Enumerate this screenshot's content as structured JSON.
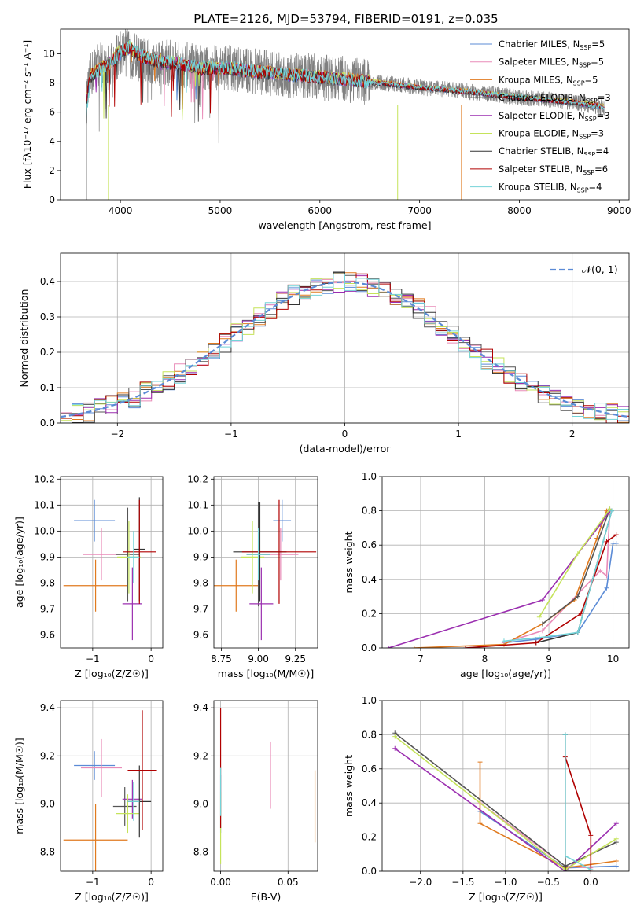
{
  "title": "PLATE=2126, MJD=53794, FIBERID=0191, z=0.035",
  "colors": {
    "Chabrier MILES": "#5b8bd6",
    "Salpeter MILES": "#e98bb8",
    "Kroupa MILES": "#e07a1f",
    "Chabrier ELODIE": "#555555",
    "Salpeter ELODIE": "#9b2fb0",
    "Kroupa ELODIE": "#c5e35a",
    "Chabrier STELIB": "#333333",
    "Salpeter STELIB": "#b00000",
    "Kroupa STELIB": "#74d3d8"
  },
  "chart_data": [
    {
      "type": "line",
      "name": "spectrum",
      "xlabel": "wavelength [Angstrom, rest frame]",
      "ylabel": "Flux [fλ10⁻¹⁷ erg cm⁻² s⁻¹ A⁻¹]",
      "xlim": [
        3400,
        9100
      ],
      "ylim": [
        0,
        11.7
      ],
      "xticks": [
        "4000",
        "5000",
        "6000",
        "7000",
        "8000",
        "9000"
      ],
      "yticks": [
        "0",
        "2",
        "4",
        "6",
        "8",
        "10"
      ],
      "legend_position": "top-right",
      "legend": [
        {
          "label": "Chabrier MILES, N",
          "sub": "SSP",
          "suffix": "=5",
          "color": "#5b8bd6"
        },
        {
          "label": "Salpeter MILES, N",
          "sub": "SSP",
          "suffix": "=5",
          "color": "#e98bb8"
        },
        {
          "label": "Kroupa MILES, N",
          "sub": "SSP",
          "suffix": "=5",
          "color": "#e07a1f"
        },
        {
          "label": "Chabrier ELODIE, N",
          "sub": "SSP",
          "suffix": "=3",
          "color": "#555555"
        },
        {
          "label": "Salpeter ELODIE, N",
          "sub": "SSP",
          "suffix": "=3",
          "color": "#9b2fb0"
        },
        {
          "label": "Kroupa ELODIE, N",
          "sub": "SSP",
          "suffix": "=3",
          "color": "#c5e35a"
        },
        {
          "label": "Chabrier STELIB, N",
          "sub": "SSP",
          "suffix": "=4",
          "color": "#333333"
        },
        {
          "label": "Salpeter STELIB, N",
          "sub": "SSP",
          "suffix": "=6",
          "color": "#b00000"
        },
        {
          "label": "Kroupa STELIB, N",
          "sub": "SSP",
          "suffix": "=4",
          "color": "#74d3d8"
        }
      ],
      "observed": {
        "color": "#808080",
        "x": [
          3660,
          3700,
          3750,
          3800,
          3850,
          3900,
          3950,
          4000,
          4050,
          4100,
          4150,
          4200,
          4300,
          4400,
          4500,
          4600,
          4700,
          4800,
          4900,
          5000,
          5200,
          5400,
          5600,
          5800,
          6000,
          6200,
          6400,
          6600,
          6800,
          7000,
          7200,
          7400,
          7600,
          7800,
          8000,
          8200,
          8400,
          8600,
          8800,
          8850
        ],
        "y": [
          6.6,
          8.4,
          9.2,
          9.4,
          8.9,
          9.2,
          9.6,
          10.0,
          10.4,
          9.8,
          9.9,
          9.6,
          9.4,
          9.5,
          9.4,
          9.3,
          9.2,
          9.0,
          9.0,
          9.1,
          8.9,
          8.8,
          8.6,
          8.5,
          8.4,
          8.3,
          8.1,
          8.0,
          7.9,
          7.7,
          7.6,
          7.5,
          7.3,
          7.2,
          7.0,
          6.9,
          6.8,
          6.6,
          6.4,
          6.3
        ]
      },
      "models": {
        "x": [
          3660,
          3700,
          3800,
          3900,
          4000,
          4100,
          4200,
          4400,
          4600,
          4800,
          5000,
          5500,
          6000,
          6500,
          7000,
          7500,
          8000,
          8500,
          8850
        ],
        "Chabrier MILES": [
          6.9,
          8.5,
          9.0,
          9.4,
          10.2,
          10.4,
          9.8,
          9.5,
          9.3,
          9.0,
          9.0,
          8.7,
          8.4,
          8.1,
          7.7,
          7.4,
          7.0,
          6.7,
          6.4
        ],
        "Kroupa STELIB": [
          5.8,
          8.3,
          8.9,
          9.3,
          10.1,
          10.6,
          9.9,
          9.6,
          9.3,
          9.1,
          9.1,
          8.7,
          8.4,
          8.0,
          7.7,
          7.4,
          7.0,
          6.7,
          6.3
        ]
      }
    },
    {
      "type": "histogram",
      "name": "residuals",
      "xlabel": "(data-model)/error",
      "ylabel": "Normed distribution",
      "xlim": [
        -2.5,
        2.5
      ],
      "ylim": [
        0,
        0.48
      ],
      "xticks": [
        "−2",
        "−1",
        "0",
        "1",
        "2"
      ],
      "yticks": [
        "0.0",
        "0.1",
        "0.2",
        "0.3",
        "0.4"
      ],
      "legend": [
        {
          "label": "𝒩(0, 1)",
          "style": "dashed",
          "color": "#5b8bd6"
        }
      ],
      "bin_width": 0.1
    },
    {
      "type": "scatter",
      "name": "age-vs-Z",
      "xlabel": "Z [log₁₀(Z/Z☉)]",
      "ylabel": "age  [log₁₀(age/yr)]",
      "xlim": [
        -1.55,
        0.2
      ],
      "ylim": [
        9.55,
        10.21
      ],
      "xticks": [
        {
          "v": -1,
          "t": "−1"
        },
        {
          "v": 0,
          "t": "0"
        }
      ],
      "yticks": [
        {
          "v": 9.6,
          "t": "9.6"
        },
        {
          "v": 9.7,
          "t": "9.7"
        },
        {
          "v": 9.8,
          "t": "9.8"
        },
        {
          "v": 9.9,
          "t": "9.9"
        },
        {
          "v": 10.0,
          "t": "10.0"
        },
        {
          "v": 10.1,
          "t": "10.1"
        },
        {
          "v": 10.2,
          "t": "10.2"
        }
      ],
      "points": [
        {
          "series": "Chabrier MILES",
          "x": -0.97,
          "y": 10.04,
          "xerr": 0.35,
          "yerr": 0.08
        },
        {
          "series": "Salpeter MILES",
          "x": -0.85,
          "y": 9.91,
          "xerr": 0.32,
          "yerr": 0.1
        },
        {
          "series": "Kroupa MILES",
          "x": -0.95,
          "y": 9.79,
          "xerr": 0.55,
          "yerr": 0.1
        },
        {
          "series": "Chabrier ELODIE",
          "x": -0.4,
          "y": 9.91,
          "xerr": 0.2,
          "yerr": 0.18
        },
        {
          "series": "Salpeter ELODIE",
          "x": -0.32,
          "y": 9.72,
          "xerr": 0.17,
          "yerr": 0.14
        },
        {
          "series": "Kroupa ELODIE",
          "x": -0.38,
          "y": 9.9,
          "xerr": 0.2,
          "yerr": 0.14
        },
        {
          "series": "Chabrier STELIB",
          "x": -0.2,
          "y": 9.93,
          "xerr": 0.1,
          "yerr": 0.2
        },
        {
          "series": "Salpeter STELIB",
          "x": -0.2,
          "y": 9.92,
          "xerr": 0.28,
          "yerr": 0.2
        },
        {
          "series": "Kroupa STELIB",
          "x": -0.3,
          "y": 9.9,
          "xerr": 0.1,
          "yerr": 0.1
        }
      ]
    },
    {
      "type": "scatter",
      "name": "age-vs-mass",
      "xlabel": "mass [log₁₀(M/M☉)]",
      "ylabel": "",
      "xlim": [
        8.7,
        9.4
      ],
      "ylim": [
        9.55,
        10.21
      ],
      "xticks": [
        {
          "v": 8.75,
          "t": "8.75"
        },
        {
          "v": 9.0,
          "t": "9.00"
        },
        {
          "v": 9.25,
          "t": "9.25"
        }
      ],
      "yticks": [
        {
          "v": 9.6,
          "t": "9.6"
        },
        {
          "v": 9.7,
          "t": "9.7"
        },
        {
          "v": 9.8,
          "t": "9.8"
        },
        {
          "v": 9.9,
          "t": "9.9"
        },
        {
          "v": 10.0,
          "t": "10.0"
        },
        {
          "v": 10.1,
          "t": "10.1"
        },
        {
          "v": 10.2,
          "t": "10.2"
        }
      ],
      "points": [
        {
          "series": "Chabrier MILES",
          "x": 9.16,
          "y": 10.04,
          "xerr": 0.06,
          "yerr": 0.08
        },
        {
          "series": "Salpeter MILES",
          "x": 9.15,
          "y": 9.91,
          "xerr": 0.12,
          "yerr": 0.1
        },
        {
          "series": "Kroupa MILES",
          "x": 8.85,
          "y": 9.79,
          "xerr": 0.15,
          "yerr": 0.1
        },
        {
          "series": "Chabrier ELODIE",
          "x": 9.0,
          "y": 9.91,
          "xerr": 0.08,
          "yerr": 0.2
        },
        {
          "series": "Salpeter ELODIE",
          "x": 9.02,
          "y": 9.72,
          "xerr": 0.08,
          "yerr": 0.14
        },
        {
          "series": "Kroupa ELODIE",
          "x": 8.96,
          "y": 9.9,
          "xerr": 0.08,
          "yerr": 0.14
        },
        {
          "series": "Chabrier STELIB",
          "x": 9.01,
          "y": 9.92,
          "xerr": 0.18,
          "yerr": 0.19
        },
        {
          "series": "Salpeter STELIB",
          "x": 9.14,
          "y": 9.92,
          "xerr": 0.25,
          "yerr": 0.2
        },
        {
          "series": "Kroupa STELIB",
          "x": 9.0,
          "y": 9.91,
          "xerr": 0.08,
          "yerr": 0.1
        }
      ]
    },
    {
      "type": "line",
      "name": "weight-vs-age",
      "xlabel": "age  [log₁₀(age/yr)]",
      "ylabel": "mass weight",
      "xlim": [
        6.4,
        10.25
      ],
      "ylim": [
        0,
        1.0
      ],
      "xticks": [
        {
          "v": 7,
          "t": "7"
        },
        {
          "v": 8,
          "t": "8"
        },
        {
          "v": 9,
          "t": "9"
        },
        {
          "v": 10,
          "t": "10"
        }
      ],
      "yticks": [
        {
          "v": 0,
          "t": "0.0"
        },
        {
          "v": 0.2,
          "t": "0.2"
        },
        {
          "v": 0.4,
          "t": "0.4"
        },
        {
          "v": 0.6,
          "t": "0.6"
        },
        {
          "v": 0.8,
          "t": "0.8"
        },
        {
          "v": 1.0,
          "t": "1.0"
        }
      ],
      "series": [
        {
          "name": "Chabrier MILES",
          "x": [
            8.3,
            8.8,
            9.45,
            9.9,
            10.0,
            10.05
          ],
          "y": [
            0.03,
            0.05,
            0.09,
            0.35,
            0.61,
            0.61
          ]
        },
        {
          "name": "Salpeter MILES",
          "x": [
            8.3,
            8.9,
            9.8,
            9.9,
            9.95
          ],
          "y": [
            0.03,
            0.1,
            0.45,
            0.42,
            0.8
          ]
        },
        {
          "name": "Kroupa MILES",
          "x": [
            6.9,
            8.3,
            8.9,
            9.4,
            9.75,
            9.9
          ],
          "y": [
            0.0,
            0.02,
            0.14,
            0.28,
            0.64,
            0.8
          ]
        },
        {
          "name": "Chabrier ELODIE",
          "x": [
            8.9,
            9.45,
            9.95
          ],
          "y": [
            0.14,
            0.3,
            0.81
          ]
        },
        {
          "name": "Salpeter ELODIE",
          "x": [
            6.5,
            8.9,
            9.8,
            9.95
          ],
          "y": [
            0.0,
            0.28,
            0.72,
            0.8
          ]
        },
        {
          "name": "Kroupa ELODIE",
          "x": [
            8.85,
            9.45,
            9.95
          ],
          "y": [
            0.18,
            0.55,
            0.81
          ]
        },
        {
          "name": "Chabrier STELIB",
          "x": [
            8.8,
            9.45,
            9.98
          ],
          "y": [
            0.03,
            0.09,
            0.8
          ]
        },
        {
          "name": "Salpeter STELIB",
          "x": [
            7.7,
            8.8,
            9.5,
            9.9,
            10.05
          ],
          "y": [
            0.0,
            0.03,
            0.2,
            0.62,
            0.66
          ]
        },
        {
          "name": "Kroupa STELIB",
          "x": [
            8.3,
            8.85,
            9.45,
            9.98
          ],
          "y": [
            0.04,
            0.06,
            0.09,
            0.8
          ]
        }
      ]
    },
    {
      "type": "scatter",
      "name": "mass-vs-Z",
      "xlabel": "Z [log₁₀(Z/Z☉)]",
      "ylabel": "mass [log₁₀(M/M☉)]",
      "xlim": [
        -1.55,
        0.2
      ],
      "ylim": [
        8.72,
        9.43
      ],
      "xticks": [
        {
          "v": -1,
          "t": "−1"
        },
        {
          "v": 0,
          "t": "0"
        }
      ],
      "yticks": [
        {
          "v": 8.8,
          "t": "8.8"
        },
        {
          "v": 9.0,
          "t": "9.0"
        },
        {
          "v": 9.2,
          "t": "9.2"
        },
        {
          "v": 9.4,
          "t": "9.4"
        }
      ],
      "points": [
        {
          "series": "Chabrier MILES",
          "x": -0.97,
          "y": 9.16,
          "xerr": 0.35,
          "yerr": 0.06
        },
        {
          "series": "Salpeter MILES",
          "x": -0.85,
          "y": 9.15,
          "xerr": 0.35,
          "yerr": 0.12
        },
        {
          "series": "Kroupa MILES",
          "x": -0.95,
          "y": 8.85,
          "xerr": 0.55,
          "yerr": 0.15
        },
        {
          "series": "Chabrier ELODIE",
          "x": -0.45,
          "y": 8.99,
          "xerr": 0.2,
          "yerr": 0.08
        },
        {
          "series": "Salpeter ELODIE",
          "x": -0.32,
          "y": 9.02,
          "xerr": 0.17,
          "yerr": 0.08
        },
        {
          "series": "Kroupa ELODIE",
          "x": -0.4,
          "y": 8.96,
          "xerr": 0.2,
          "yerr": 0.08
        },
        {
          "series": "Chabrier STELIB",
          "x": -0.2,
          "y": 9.01,
          "xerr": 0.2,
          "yerr": 0.15
        },
        {
          "series": "Salpeter STELIB",
          "x": -0.15,
          "y": 9.14,
          "xerr": 0.25,
          "yerr": 0.25
        },
        {
          "series": "Kroupa STELIB",
          "x": -0.3,
          "y": 9.01,
          "xerr": 0.1,
          "yerr": 0.08
        }
      ]
    },
    {
      "type": "scatter",
      "name": "mass-vs-ebv",
      "xlabel": "E(B-V)",
      "ylabel": "",
      "xlim": [
        -0.005,
        0.072
      ],
      "ylim": [
        8.72,
        9.43
      ],
      "xticks": [
        {
          "v": 0.0,
          "t": "0.00"
        },
        {
          "v": 0.05,
          "t": "0.05"
        }
      ],
      "yticks": [
        {
          "v": 8.8,
          "t": "8.8"
        },
        {
          "v": 9.0,
          "t": "9.0"
        },
        {
          "v": 9.2,
          "t": "9.2"
        },
        {
          "v": 9.4,
          "t": "9.4"
        }
      ],
      "points": [
        {
          "series": "Chabrier MILES",
          "x": 0.0,
          "y": 9.0,
          "xerr": 0,
          "yerr": 0.12
        },
        {
          "series": "Salpeter MILES",
          "x": 0.037,
          "y": 9.12,
          "xerr": 0,
          "yerr": 0.14
        },
        {
          "series": "Kroupa MILES",
          "x": 0.07,
          "y": 8.99,
          "xerr": 0,
          "yerr": 0.15
        },
        {
          "series": "Kroupa ELODIE",
          "x": 0.0,
          "y": 8.9,
          "xerr": 0,
          "yerr": 0.15
        },
        {
          "series": "Salpeter STELIB",
          "x": 0.0,
          "y": 9.15,
          "xerr": 0,
          "yerr": 0.25
        },
        {
          "series": "Kroupa STELIB",
          "x": 0.0,
          "y": 9.05,
          "xerr": 0,
          "yerr": 0.1
        }
      ]
    },
    {
      "type": "line",
      "name": "weight-vs-Z",
      "xlabel": "Z [log₁₀(Z/Z☉)]",
      "ylabel": "mass weight",
      "xlim": [
        -2.45,
        0.45
      ],
      "ylim": [
        0,
        1.0
      ],
      "xticks": [
        {
          "v": -2,
          "t": "−2.0"
        },
        {
          "v": -1.5,
          "t": "−1.5"
        },
        {
          "v": -1,
          "t": "−1.0"
        },
        {
          "v": -0.5,
          "t": "−0.5"
        },
        {
          "v": 0,
          "t": "0.0"
        }
      ],
      "yticks": [
        {
          "v": 0,
          "t": "0.0"
        },
        {
          "v": 0.2,
          "t": "0.2"
        },
        {
          "v": 0.4,
          "t": "0.4"
        },
        {
          "v": 0.6,
          "t": "0.6"
        },
        {
          "v": 0.8,
          "t": "0.8"
        },
        {
          "v": 1.0,
          "t": "1.0"
        }
      ],
      "series": [
        {
          "name": "Chabrier MILES",
          "x": [
            -1.3,
            -0.3,
            0.3
          ],
          "y": [
            0.35,
            0.02,
            0.03
          ]
        },
        {
          "name": "Salpeter MILES",
          "x": [
            -1.3,
            -0.3,
            0.0
          ],
          "y": [
            0.4,
            0.03,
            0.02
          ]
        },
        {
          "name": "Kroupa MILES",
          "x": [
            -1.3,
            -1.3,
            -0.3,
            0.3
          ],
          "y": [
            0.64,
            0.28,
            0.02,
            0.06
          ]
        },
        {
          "name": "Chabrier ELODIE",
          "x": [
            -2.3,
            -0.3,
            0.3
          ],
          "y": [
            0.81,
            0.03,
            0.17
          ]
        },
        {
          "name": "Salpeter ELODIE",
          "x": [
            -2.3,
            -0.3,
            0.3
          ],
          "y": [
            0.72,
            0.0,
            0.28
          ]
        },
        {
          "name": "Kroupa ELODIE",
          "x": [
            -2.3,
            -0.3,
            0.3
          ],
          "y": [
            0.79,
            0.01,
            0.19
          ]
        },
        {
          "name": "Chabrier STELIB",
          "x": [
            -0.3,
            -0.3,
            0.0
          ],
          "y": [
            0.8,
            0.0,
            0.0
          ]
        },
        {
          "name": "Salpeter STELIB",
          "x": [
            -0.3,
            0.0,
            0.0
          ],
          "y": [
            0.67,
            0.21,
            0.0
          ]
        },
        {
          "name": "Kroupa STELIB",
          "x": [
            -0.3,
            -0.3,
            0.0
          ],
          "y": [
            0.8,
            0.09,
            0.01
          ]
        }
      ]
    }
  ]
}
